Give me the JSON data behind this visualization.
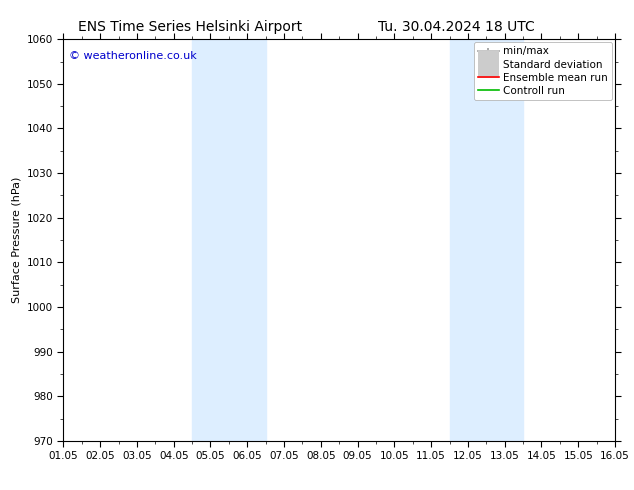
{
  "title_left": "ENS Time Series Helsinki Airport",
  "title_right": "Tu. 30.04.2024 18 UTC",
  "ylabel": "Surface Pressure (hPa)",
  "ylim": [
    970,
    1060
  ],
  "yticks": [
    970,
    980,
    990,
    1000,
    1010,
    1020,
    1030,
    1040,
    1050,
    1060
  ],
  "xlim": [
    0,
    15
  ],
  "xtick_labels": [
    "01.05",
    "02.05",
    "03.05",
    "04.05",
    "05.05",
    "06.05",
    "07.05",
    "08.05",
    "09.05",
    "10.05",
    "11.05",
    "12.05",
    "13.05",
    "14.05",
    "15.05",
    "16.05"
  ],
  "xtick_positions": [
    0,
    1,
    2,
    3,
    4,
    5,
    6,
    7,
    8,
    9,
    10,
    11,
    12,
    13,
    14,
    15
  ],
  "shaded_regions": [
    {
      "xmin": 3.5,
      "xmax": 5.5
    },
    {
      "xmin": 10.5,
      "xmax": 12.5
    }
  ],
  "shade_color": "#ddeeff",
  "watermark": "© weatheronline.co.uk",
  "watermark_color": "#0000cc",
  "watermark_fontsize": 8,
  "background_color": "#ffffff",
  "plot_bg_color": "#ffffff",
  "legend_items": [
    {
      "label": "min/max",
      "color": "#999999",
      "lw": 1.2,
      "style": "line_with_caps"
    },
    {
      "label": "Standard deviation",
      "color": "#cccccc",
      "lw": 5,
      "style": "thick"
    },
    {
      "label": "Ensemble mean run",
      "color": "#ff0000",
      "lw": 1.2,
      "style": "line"
    },
    {
      "label": "Controll run",
      "color": "#00bb00",
      "lw": 1.2,
      "style": "line"
    }
  ],
  "title_fontsize": 10,
  "axis_label_fontsize": 8,
  "tick_fontsize": 7.5,
  "legend_fontsize": 7.5
}
